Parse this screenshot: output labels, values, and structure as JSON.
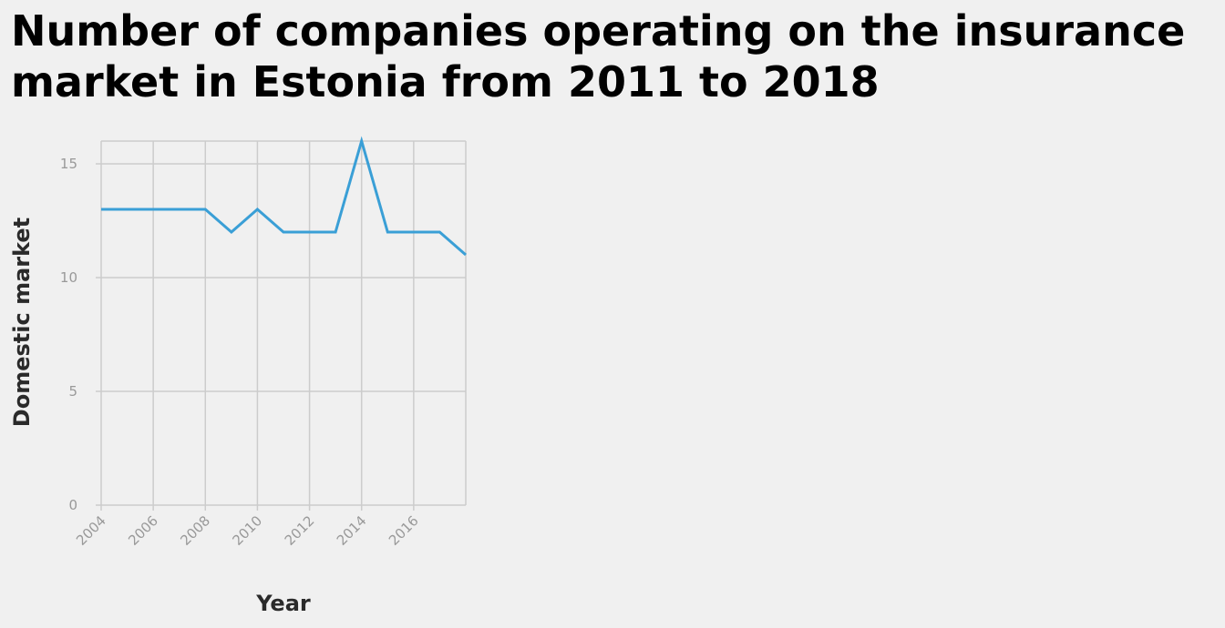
{
  "chart_data": {
    "type": "line",
    "title": "Number of companies operating on the insurance market in Estonia from 2011 to 2018",
    "xlabel": "Year",
    "ylabel": "Domestic market",
    "xlim": [
      2004,
      2018
    ],
    "ylim": [
      0,
      16
    ],
    "x_ticks": [
      2004,
      2006,
      2008,
      2010,
      2012,
      2014,
      2016
    ],
    "y_ticks": [
      0,
      5,
      10,
      15
    ],
    "grid": true,
    "legend": "none",
    "series": [
      {
        "color": "#3a9fd6",
        "x": [
          2004,
          2005,
          2006,
          2007,
          2008,
          2009,
          2010,
          2011,
          2012,
          2013,
          2014,
          2015,
          2016,
          2017,
          2018
        ],
        "y": [
          13,
          13,
          13,
          13,
          13,
          12,
          13,
          12,
          12,
          12,
          16,
          12,
          12,
          12,
          11
        ]
      }
    ]
  }
}
